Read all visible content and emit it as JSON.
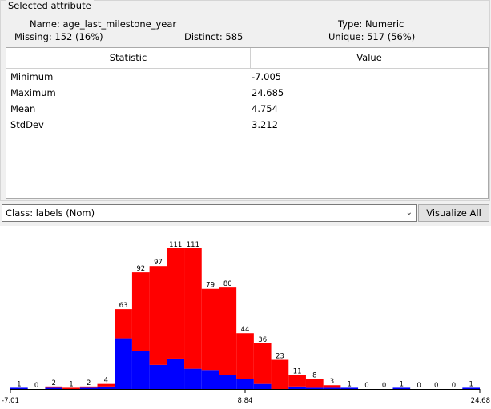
{
  "selected_attribute": {
    "title": "Selected attribute",
    "name_label": "Name:",
    "name_value": "age_last_milestone_year",
    "type_label": "Type:",
    "type_value": "Numeric",
    "missing_label": "Missing:",
    "missing_value": "152 (16%)",
    "distinct_label": "Distinct:",
    "distinct_value": "585",
    "unique_label": "Unique:",
    "unique_value": "517 (56%)"
  },
  "stats_table": {
    "headers": [
      "Statistic",
      "Value"
    ],
    "rows": [
      [
        "Minimum",
        "-7.005"
      ],
      [
        "Maximum",
        "24.685"
      ],
      [
        "Mean",
        "4.754"
      ],
      [
        "StdDev",
        "3.212"
      ]
    ]
  },
  "class_select": {
    "value": "Class: labels (Nom)"
  },
  "visualize_all_label": "Visualize All",
  "colors": {
    "class_0": "#0000ff",
    "class_1": "#ff0000",
    "axis": "#000000"
  },
  "chart_data": {
    "type": "bar",
    "stacked": true,
    "x_range": [
      -7.01,
      24.68
    ],
    "tick_labels": [
      "-7.01",
      "8.84",
      "24.68"
    ],
    "counts": [
      1,
      0,
      2,
      1,
      2,
      4,
      63,
      92,
      97,
      111,
      111,
      79,
      80,
      44,
      36,
      23,
      11,
      8,
      3,
      1,
      0,
      0,
      1,
      0,
      0,
      0,
      1
    ],
    "series": [
      {
        "values": [
          1,
          0,
          1,
          0,
          1,
          2,
          40,
          30,
          19,
          24,
          16,
          15,
          11,
          8,
          4,
          0,
          2,
          1,
          1,
          1,
          0,
          0,
          1,
          0,
          0,
          0,
          1
        ]
      },
      {
        "values": [
          0,
          0,
          1,
          1,
          1,
          2,
          23,
          62,
          78,
          87,
          95,
          64,
          69,
          36,
          32,
          23,
          9,
          7,
          2,
          0,
          0,
          0,
          0,
          0,
          0,
          0,
          0
        ]
      }
    ]
  }
}
